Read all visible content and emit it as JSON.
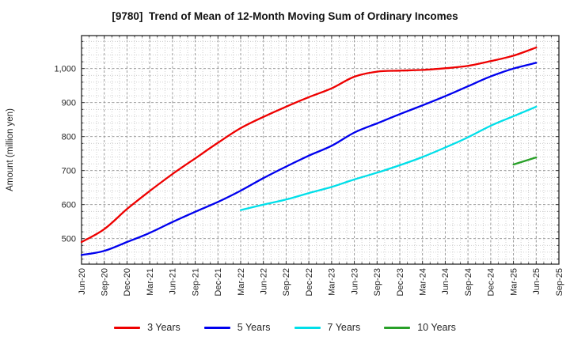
{
  "title": "[9780]  Trend of Mean of 12-Month Moving Sum of Ordinary Incomes",
  "y_axis": {
    "label": "Amount (million yen)",
    "tick_labels": [
      "500",
      "600",
      "700",
      "800",
      "900",
      "1,000"
    ],
    "tick_values": [
      500,
      600,
      700,
      800,
      900,
      1000
    ]
  },
  "x_axis": {
    "tick_labels": [
      "Jun-20",
      "Sep-20",
      "Dec-20",
      "Mar-21",
      "Jun-21",
      "Sep-21",
      "Dec-21",
      "Mar-22",
      "Jun-22",
      "Sep-22",
      "Dec-22",
      "Mar-23",
      "Jun-23",
      "Sep-23",
      "Dec-23",
      "Mar-24",
      "Jun-24",
      "Sep-24",
      "Dec-24",
      "Mar-25",
      "Jun-25",
      "Sep-25"
    ]
  },
  "colors": {
    "grid_major": "#8f8f8f",
    "grid_minor": "#c4c4c4",
    "axis_border": "#262626",
    "tick_text": "#262626"
  },
  "chart_data": {
    "type": "line",
    "title": "[9780]  Trend of Mean of 12-Month Moving Sum of Ordinary Incomes",
    "xlabel": "",
    "ylabel": "Amount (million yen)",
    "ylim": [
      425,
      1097
    ],
    "grid": "major-and-minor, dotted gray",
    "legend_position": "bottom",
    "categories": [
      "Jun-20",
      "Sep-20",
      "Dec-20",
      "Mar-21",
      "Jun-21",
      "Sep-21",
      "Dec-21",
      "Mar-22",
      "Jun-22",
      "Sep-22",
      "Dec-22",
      "Mar-23",
      "Jun-23",
      "Sep-23",
      "Dec-23",
      "Mar-24",
      "Jun-24",
      "Sep-24",
      "Dec-24",
      "Mar-25",
      "Jun-25",
      "Sep-25"
    ],
    "series": [
      {
        "name": "3 Years",
        "color": "#ee0000",
        "start_index": 0,
        "values": [
          490,
          528,
          587,
          640,
          690,
          736,
          782,
          825,
          858,
          888,
          916,
          942,
          976,
          991,
          994,
          996,
          1001,
          1008,
          1022,
          1038,
          1062
        ]
      },
      {
        "name": "5 Years",
        "color": "#0000ee",
        "start_index": 0,
        "values": [
          452,
          464,
          490,
          517,
          549,
          579,
          608,
          641,
          678,
          712,
          744,
          773,
          812,
          839,
          866,
          892,
          919,
          948,
          977,
          1000,
          1017
        ]
      },
      {
        "name": "7 Years",
        "color": "#00dfe9",
        "start_index": 7,
        "values": [
          584,
          600,
          615,
          634,
          652,
          674,
          694,
          716,
          740,
          768,
          798,
          832,
          860,
          888
        ]
      },
      {
        "name": "10 Years",
        "color": "#28a028",
        "start_index": 19,
        "values": [
          718,
          739
        ]
      }
    ]
  }
}
